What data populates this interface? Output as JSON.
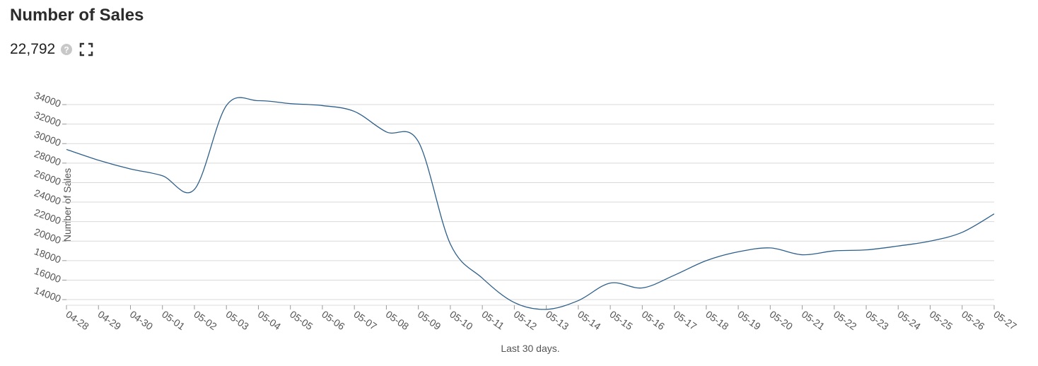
{
  "header": {
    "title": "Number of Sales",
    "value": "22,792"
  },
  "chart_data": {
    "type": "line",
    "y_label": "Number of Sales",
    "x_label": "Last 30 days.",
    "categories": [
      "04-28",
      "04-29",
      "04-30",
      "05-01",
      "05-02",
      "05-03",
      "05-04",
      "05-05",
      "05-06",
      "05-07",
      "05-08",
      "05-09",
      "05-10",
      "05-11",
      "05-12",
      "05-13",
      "05-14",
      "05-15",
      "05-16",
      "05-17",
      "05-18",
      "05-19",
      "05-20",
      "05-21",
      "05-22",
      "05-23",
      "05-24",
      "05-25",
      "05-26",
      "05-27"
    ],
    "series": [
      {
        "name": "Number of Sales",
        "color": "#2d5f8b",
        "values": [
          29400,
          28300,
          27400,
          26700,
          25300,
          33900,
          34400,
          34100,
          33900,
          33300,
          31200,
          30200,
          19700,
          16200,
          13700,
          13000,
          13900,
          15700,
          15200,
          16500,
          18000,
          18900,
          19300,
          18600,
          19000,
          19100,
          19500,
          20000,
          20900,
          22792
        ]
      }
    ],
    "ylim": [
      12800,
      34800
    ],
    "yticks": [
      14000,
      16000,
      18000,
      20000,
      22000,
      24000,
      26000,
      28000,
      30000,
      32000,
      34000
    ],
    "grid": true
  }
}
